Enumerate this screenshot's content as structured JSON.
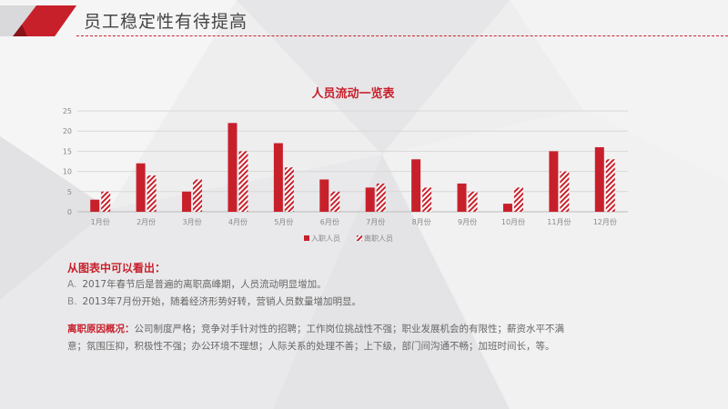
{
  "header": {
    "title": "员工稳定性有待提高"
  },
  "colors": {
    "accent": "#c8202b"
  },
  "chart_data": {
    "type": "bar",
    "title": "人员流动一览表",
    "categories": [
      "1月份",
      "2月份",
      "3月份",
      "4月份",
      "5月份",
      "6月份",
      "7月份",
      "8月份",
      "9月份",
      "10月份",
      "11月份",
      "12月份"
    ],
    "series": [
      {
        "name": "入职人员",
        "values": [
          3,
          12,
          5,
          22,
          17,
          8,
          6,
          13,
          7,
          2,
          15,
          16
        ],
        "fill": "solid"
      },
      {
        "name": "离职人员",
        "values": [
          5,
          9,
          8,
          15,
          11,
          5,
          7,
          6,
          5,
          6,
          10,
          13
        ],
        "fill": "hatched"
      }
    ],
    "ylim": [
      0,
      25
    ],
    "yticks": [
      0,
      5,
      10,
      15,
      20,
      25
    ],
    "grid": true,
    "legend_position": "bottom"
  },
  "findings": {
    "heading": "从图表中可以看出：",
    "items": [
      {
        "prefix": "A.",
        "text": "2017年春节后是普遍的离职高峰期，人员流动明显增加。"
      },
      {
        "prefix": "B.",
        "text": "2013年7月份开始，随着经济形势好转，营销人员数量增加明显。"
      }
    ]
  },
  "reasons": {
    "heading": "离职原因概况：",
    "text": "公司制度严格；竞争对手针对性的招聘；工作岗位挑战性不强；职业发展机会的有限性；薪资水平不满意；氛围压抑，积极性不强；办公环境不理想；人际关系的处理不善；上下级，部门间沟通不畅；加班时间长，等。"
  }
}
